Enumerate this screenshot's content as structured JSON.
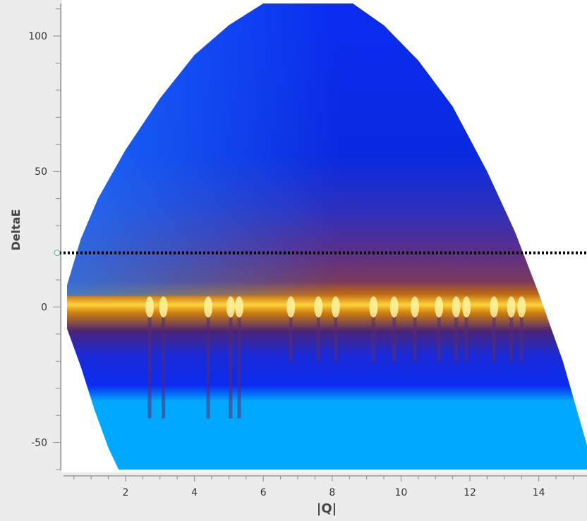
{
  "chart_data": {
    "type": "heatmap",
    "title": "",
    "xlabel": "|Q|",
    "ylabel": "DeltaE",
    "xlim": [
      0.3,
      15.4
    ],
    "ylim": [
      -60.5,
      112.5
    ],
    "x_ticks": [
      2,
      4,
      6,
      8,
      10,
      12,
      14
    ],
    "y_ticks": [
      -50,
      0,
      50,
      100
    ],
    "x_tick_labels": [
      "2",
      "4",
      "6",
      "8",
      "10",
      "12",
      "14"
    ],
    "y_tick_labels": [
      "-50",
      "0",
      "50",
      "100"
    ],
    "grid": false,
    "colors": {
      "low": "#00a8ff",
      "mid_low": "#0a2cf0",
      "mid": "#3a1f9a",
      "high": "#c06a10",
      "peak": "#fff4a0",
      "background": "#ffffff",
      "cut_line": "#000000"
    },
    "coverage_upper_boundary": [
      {
        "x": 0.3,
        "y": 8
      },
      {
        "x": 0.7,
        "y": 25
      },
      {
        "x": 1.2,
        "y": 40
      },
      {
        "x": 2.0,
        "y": 58
      },
      {
        "x": 3.0,
        "y": 77
      },
      {
        "x": 4.0,
        "y": 93
      },
      {
        "x": 5.0,
        "y": 104
      },
      {
        "x": 6.0,
        "y": 112
      },
      {
        "x": 8.6,
        "y": 112
      },
      {
        "x": 9.5,
        "y": 104
      },
      {
        "x": 10.5,
        "y": 91
      },
      {
        "x": 11.5,
        "y": 74
      },
      {
        "x": 12.5,
        "y": 50
      },
      {
        "x": 13.3,
        "y": 28
      },
      {
        "x": 14.0,
        "y": 5
      },
      {
        "x": 14.7,
        "y": -20
      },
      {
        "x": 15.4,
        "y": -51
      }
    ],
    "coverage_lower_boundary": [
      {
        "x": 0.3,
        "y": -8
      },
      {
        "x": 0.7,
        "y": -22
      },
      {
        "x": 1.1,
        "y": -38
      },
      {
        "x": 1.5,
        "y": -52
      },
      {
        "x": 1.8,
        "y": -60
      },
      {
        "x": 15.4,
        "y": -60
      }
    ],
    "elastic_line": {
      "deltae": 0
    },
    "bragg_peaks_q": [
      2.7,
      3.1,
      4.4,
      5.05,
      5.3,
      6.8,
      7.6,
      8.1,
      9.2,
      9.8,
      10.4,
      11.1,
      11.6,
      11.9,
      12.7,
      13.2,
      13.5
    ],
    "horizontal_cut": {
      "deltae": 20,
      "style": "dotted"
    }
  }
}
